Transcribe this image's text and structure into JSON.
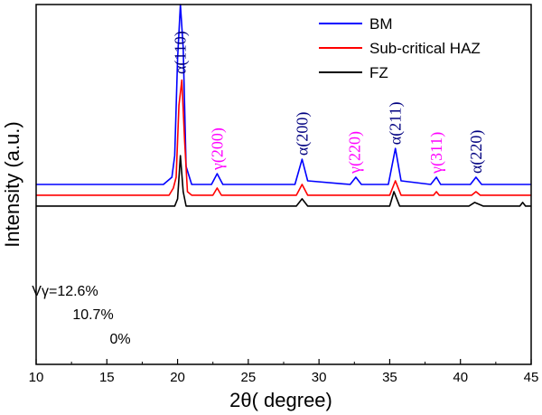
{
  "chart_data": {
    "type": "line",
    "xlabel": "2θ( degree)",
    "ylabel": "Intensity (a.u.)",
    "xlim": [
      10,
      45
    ],
    "x_ticks": [
      10,
      15,
      20,
      25,
      30,
      35,
      40,
      45
    ],
    "y_ticks_shown": false,
    "grid": false,
    "legend_position": "top-right",
    "legend": [
      "BM",
      "Sub-critical HAZ",
      "FZ"
    ],
    "series": [
      {
        "name": "BM",
        "color": "#0000ff",
        "baseline": 0.5,
        "fraction_label": "Vγ=12.6%",
        "points": [
          [
            10.0,
            0.5
          ],
          [
            19.0,
            0.5
          ],
          [
            19.6,
            0.52
          ],
          [
            19.8,
            0.58
          ],
          [
            20.0,
            0.85
          ],
          [
            20.2,
            1.0
          ],
          [
            20.4,
            0.88
          ],
          [
            20.6,
            0.55
          ],
          [
            21.0,
            0.5
          ],
          [
            22.4,
            0.5
          ],
          [
            22.8,
            0.53
          ],
          [
            23.2,
            0.5
          ],
          [
            28.3,
            0.5
          ],
          [
            28.8,
            0.57
          ],
          [
            29.2,
            0.51
          ],
          [
            32.2,
            0.5
          ],
          [
            32.6,
            0.52
          ],
          [
            33.0,
            0.5
          ],
          [
            34.9,
            0.5
          ],
          [
            35.4,
            0.6
          ],
          [
            35.8,
            0.51
          ],
          [
            37.9,
            0.5
          ],
          [
            38.3,
            0.52
          ],
          [
            38.6,
            0.5
          ],
          [
            40.7,
            0.5
          ],
          [
            41.1,
            0.52
          ],
          [
            41.5,
            0.5
          ],
          [
            45.0,
            0.5
          ]
        ]
      },
      {
        "name": "Sub-critical HAZ",
        "color": "#ff0000",
        "baseline": 0.47,
        "fraction_label": "10.7%",
        "points": [
          [
            10.0,
            0.47
          ],
          [
            19.4,
            0.47
          ],
          [
            19.7,
            0.49
          ],
          [
            19.9,
            0.52
          ],
          [
            20.1,
            0.72
          ],
          [
            20.3,
            0.79
          ],
          [
            20.5,
            0.62
          ],
          [
            20.7,
            0.48
          ],
          [
            21.0,
            0.47
          ],
          [
            22.5,
            0.47
          ],
          [
            22.8,
            0.49
          ],
          [
            23.1,
            0.47
          ],
          [
            28.4,
            0.47
          ],
          [
            28.8,
            0.5
          ],
          [
            29.2,
            0.47
          ],
          [
            35.0,
            0.47
          ],
          [
            35.4,
            0.51
          ],
          [
            35.8,
            0.47
          ],
          [
            38.1,
            0.47
          ],
          [
            38.3,
            0.48
          ],
          [
            38.5,
            0.47
          ],
          [
            40.8,
            0.47
          ],
          [
            41.1,
            0.48
          ],
          [
            41.4,
            0.47
          ],
          [
            45.0,
            0.47
          ]
        ]
      },
      {
        "name": "FZ",
        "color": "#000000",
        "baseline": 0.44,
        "fraction_label": "0%",
        "points": [
          [
            10.0,
            0.44
          ],
          [
            19.8,
            0.44
          ],
          [
            20.0,
            0.46
          ],
          [
            20.2,
            0.58
          ],
          [
            20.4,
            0.48
          ],
          [
            20.6,
            0.44
          ],
          [
            28.4,
            0.44
          ],
          [
            28.8,
            0.46
          ],
          [
            29.2,
            0.44
          ],
          [
            35.0,
            0.44
          ],
          [
            35.3,
            0.48
          ],
          [
            35.7,
            0.44
          ],
          [
            40.6,
            0.44
          ],
          [
            41.0,
            0.45
          ],
          [
            41.6,
            0.44
          ],
          [
            44.2,
            0.44
          ],
          [
            44.4,
            0.45
          ],
          [
            44.6,
            0.44
          ],
          [
            45.0,
            0.44
          ]
        ]
      }
    ],
    "peak_labels": [
      {
        "text": "α(110)",
        "x": 20.2,
        "color": "#000080"
      },
      {
        "text": "γ(200)",
        "x": 22.8,
        "color": "#ff00ff"
      },
      {
        "text": "α(200)",
        "x": 28.8,
        "color": "#000080"
      },
      {
        "text": "γ(220)",
        "x": 32.5,
        "color": "#ff00ff"
      },
      {
        "text": "α(211)",
        "x": 35.4,
        "color": "#000080"
      },
      {
        "text": "γ(311)",
        "x": 38.3,
        "color": "#ff00ff"
      },
      {
        "text": "α(220)",
        "x": 41.1,
        "color": "#000080"
      }
    ]
  }
}
